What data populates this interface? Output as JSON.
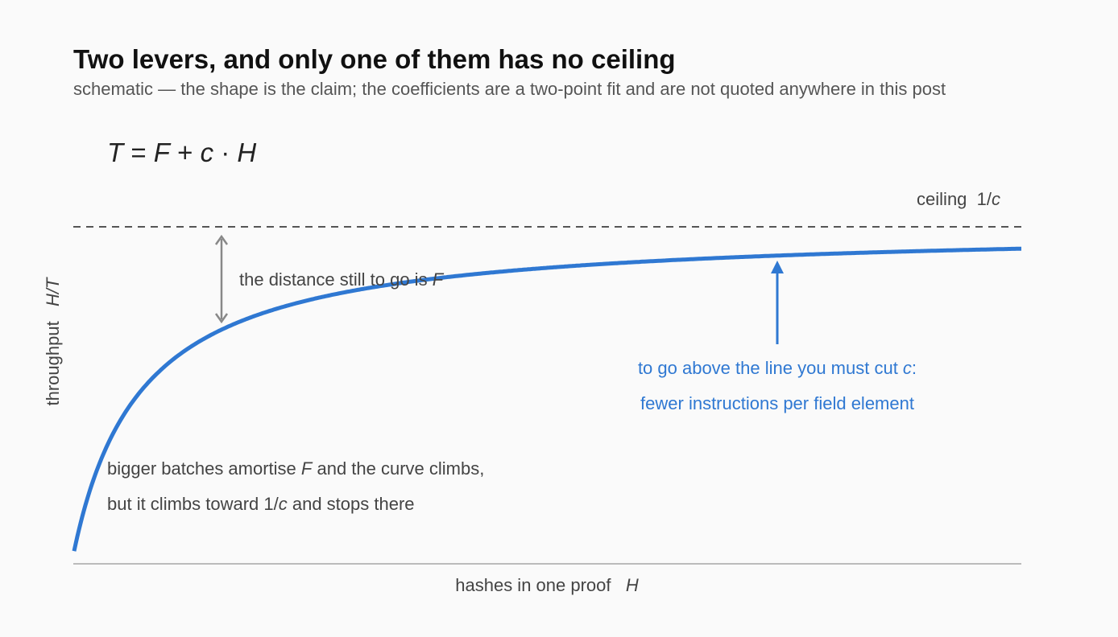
{
  "header": {
    "title": "Two levers, and only one of them has no ceiling",
    "subtitle": "schematic — the shape is the claim; the coefficients are a two-point fit and are not quoted anywhere in this post"
  },
  "formula": [
    "T",
    " = ",
    "F",
    " + ",
    "c",
    " · ",
    "H"
  ],
  "ceiling_label": [
    "ceiling  1/",
    "c"
  ],
  "gap_label": [
    "the distance still to go is ",
    "F"
  ],
  "cut_label": [
    [
      "to go above the line you must cut ",
      "c",
      ":"
    ],
    [
      "fewer instructions per field element"
    ]
  ],
  "curve_label": [
    [
      "bigger batches amortise ",
      "F",
      " and the curve climbs,"
    ],
    [
      "but it climbs toward 1/",
      "c",
      " and stops there"
    ]
  ],
  "y_axis_label": [
    "throughput   ",
    "H/T"
  ],
  "x_axis_label": [
    "hashes in one proof   ",
    "H"
  ]
}
